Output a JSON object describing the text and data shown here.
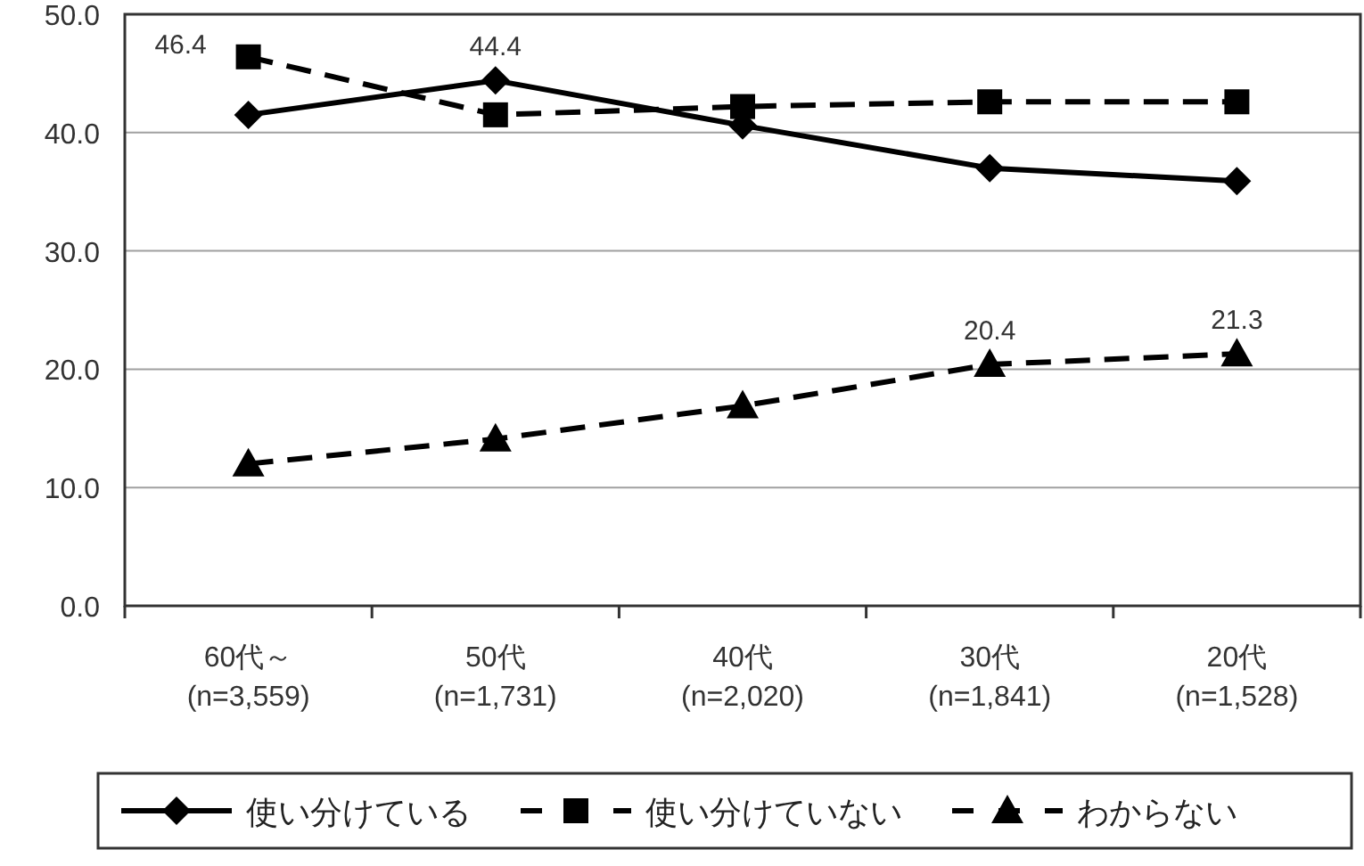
{
  "chart_data": {
    "type": "line",
    "categories": [
      "60代～\n(n=3,559)",
      "50代\n(n=1,731)",
      "40代\n(n=2,020)",
      "30代\n(n=1,841)",
      "20代\n(n=1,528)"
    ],
    "series": [
      {
        "name": "使い分けている",
        "color": "#000000",
        "marker": "diamond",
        "line_style": "solid",
        "values": [
          41.5,
          44.4,
          40.6,
          37.0,
          35.9
        ],
        "value_labels": [
          null,
          "44.4",
          null,
          null,
          null
        ]
      },
      {
        "name": "使い分けていない",
        "color": "#000000",
        "marker": "square",
        "line_style": "dashed",
        "values": [
          46.4,
          41.5,
          42.2,
          42.6,
          42.6
        ],
        "value_labels": [
          "46.4",
          null,
          null,
          null,
          null
        ]
      },
      {
        "name": "わからない",
        "color": "#000000",
        "marker": "triangle",
        "line_style": "dashed",
        "values": [
          12.0,
          14.1,
          16.9,
          20.4,
          21.3
        ],
        "value_labels": [
          null,
          null,
          null,
          "20.4",
          "21.3"
        ]
      }
    ],
    "ylim": [
      0,
      50
    ],
    "yticks": [
      {
        "value": 0,
        "label": "0.0"
      },
      {
        "value": 10,
        "label": "10.0"
      },
      {
        "value": 20,
        "label": "20.0"
      },
      {
        "value": 30,
        "label": "30.0"
      },
      {
        "value": 40,
        "label": "40.0"
      },
      {
        "value": 50,
        "label": "50.0"
      }
    ],
    "grid": "y",
    "legend": "bottom"
  }
}
